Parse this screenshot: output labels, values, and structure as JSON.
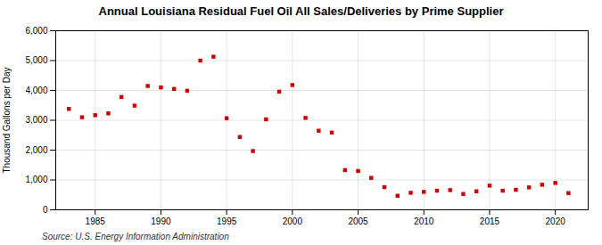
{
  "chart_data": {
    "type": "scatter",
    "title": "Annual Louisiana Residual Fuel Oil All Sales/Deliveries by Prime Supplier",
    "ylabel": "Thousand Gallons per Day",
    "annotations": [
      "Source: U.S. Energy Information Administration"
    ],
    "x": [
      1983,
      1984,
      1985,
      1986,
      1987,
      1988,
      1989,
      1990,
      1991,
      1992,
      1993,
      1994,
      1995,
      1996,
      1997,
      1998,
      1999,
      2000,
      2001,
      2002,
      2003,
      2004,
      2005,
      2006,
      2007,
      2008,
      2009,
      2010,
      2011,
      2012,
      2013,
      2014,
      2015,
      2016,
      2017,
      2018,
      2019,
      2020,
      2021
    ],
    "values": [
      3380,
      3100,
      3170,
      3230,
      3780,
      3490,
      4150,
      4100,
      4050,
      3990,
      5000,
      5130,
      3070,
      2440,
      1970,
      3030,
      3960,
      4180,
      3080,
      2650,
      2590,
      1330,
      1300,
      1070,
      760,
      470,
      570,
      600,
      640,
      660,
      530,
      620,
      810,
      640,
      670,
      750,
      840,
      900,
      560
    ],
    "color": "#cc0000",
    "marker": "square",
    "xlim": [
      1982,
      2022.5
    ],
    "xticks": [
      1985,
      1990,
      1995,
      2000,
      2005,
      2010,
      2015,
      2020
    ],
    "ylim": [
      0,
      6000
    ],
    "yticks": [
      0,
      {
        "value": 1000,
        "label": "1,000"
      },
      {
        "value": 2000,
        "label": "2,000"
      },
      {
        "value": 3000,
        "label": "3,000"
      },
      {
        "value": 4000,
        "label": "4,000"
      },
      {
        "value": 5000,
        "label": "5,000"
      },
      {
        "value": 6000,
        "label": "6,000"
      }
    ],
    "grid": true
  }
}
